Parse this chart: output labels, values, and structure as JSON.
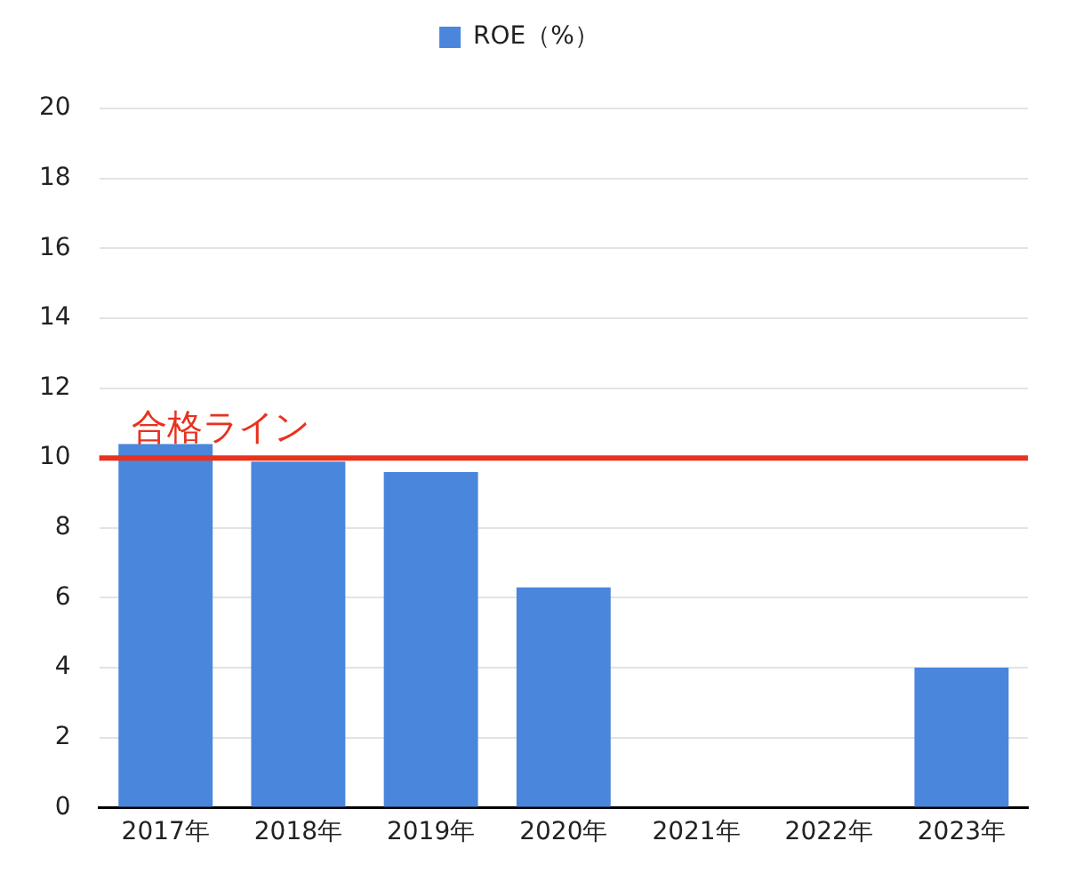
{
  "chart_data": {
    "type": "bar",
    "categories": [
      "2017年",
      "2018年",
      "2019年",
      "2020年",
      "2021年",
      "2022年",
      "2023年"
    ],
    "series": [
      {
        "name": "ROE（%）",
        "color": "#4a86dc",
        "values": [
          10.4,
          9.9,
          9.6,
          6.3,
          null,
          null,
          4.0
        ]
      }
    ],
    "ylim": [
      0,
      20
    ],
    "yticks": [
      0,
      2,
      4,
      6,
      8,
      10,
      12,
      14,
      16,
      18,
      20
    ],
    "ref_lines": [
      {
        "axis": "y",
        "value": 10,
        "label": "合格ライン",
        "color": "#e8321e"
      }
    ],
    "grid": "y",
    "legend": "top"
  }
}
